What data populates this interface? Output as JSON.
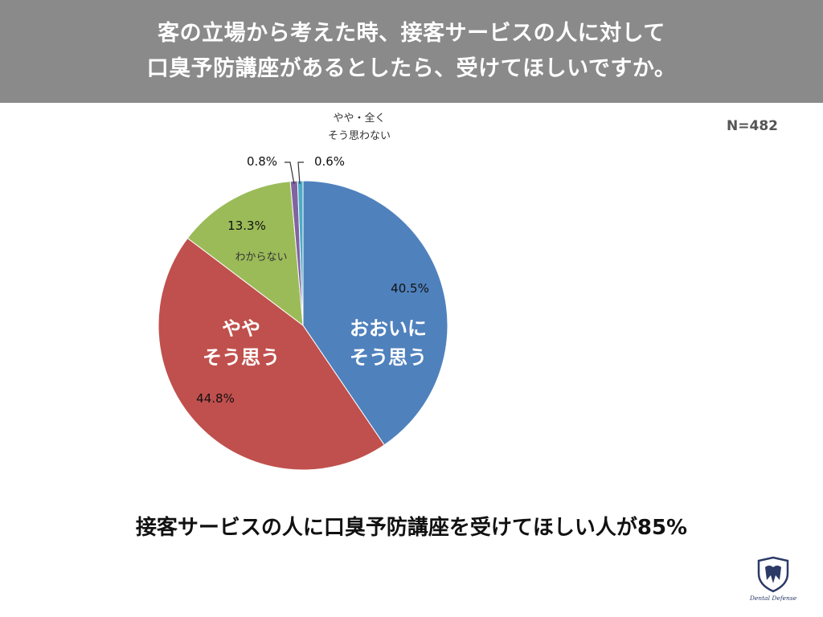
{
  "header": {
    "line1": "客の立場から考えた時、接客サービスの人に対して",
    "line2": "口臭予防講座があるとしたら、受けてほしいですか。"
  },
  "sample_size": "N=482",
  "conclusion": "接客サービスの人に口臭予防講座を受けてほしい人が85%",
  "logo": {
    "text": "Dental Defense",
    "icon": "tooth-shield-icon"
  },
  "chart_data": {
    "type": "pie",
    "start_angle_deg": 0,
    "direction": "clockwise",
    "slices": [
      {
        "label": [
          "おおいに",
          "そう思う"
        ],
        "value": 40.5,
        "pct_label": "40.5%",
        "color": "#4f81bd"
      },
      {
        "label": [
          "やや",
          "そう思う"
        ],
        "value": 44.8,
        "pct_label": "44.8%",
        "color": "#c0504d"
      },
      {
        "label": [
          "わからない"
        ],
        "value": 13.3,
        "pct_label": "13.3%",
        "color": "#9bbb59"
      },
      {
        "label": [],
        "value": 0.8,
        "pct_label": "0.8%",
        "color": "#8064a2"
      },
      {
        "label": [
          "やや・全く",
          "そう思わない"
        ],
        "value": 0.6,
        "pct_label": "0.6%",
        "color": "#4bacc6"
      }
    ]
  }
}
